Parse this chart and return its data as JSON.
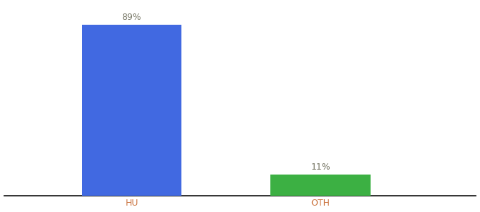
{
  "categories": [
    "HU",
    "OTH"
  ],
  "values": [
    89,
    11
  ],
  "bar_colors": [
    "#4169e1",
    "#3cb043"
  ],
  "label_texts": [
    "89%",
    "11%"
  ],
  "background_color": "#ffffff",
  "ylim": [
    0,
    100
  ],
  "bar_width": 0.18,
  "label_fontsize": 9,
  "tick_fontsize": 9,
  "tick_color": "#cc7744",
  "x_positions": [
    0.28,
    0.62
  ]
}
